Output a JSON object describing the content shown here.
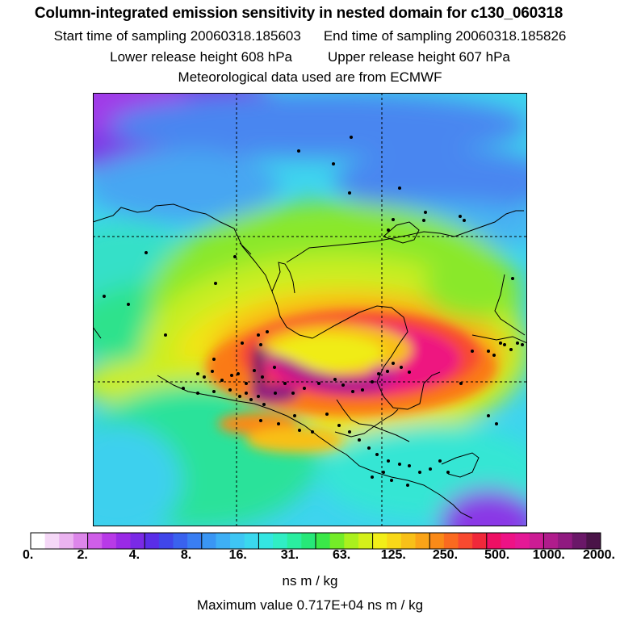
{
  "header": {
    "title": "Column-integrated emission sensitivity in nested domain for c130_060318",
    "start_label": "Start time of sampling 20060318.185603",
    "end_label": "End time of sampling 20060318.185826",
    "lower_label": "Lower release height  608 hPa",
    "upper_label": "Upper release height  607 hPa",
    "met_label": "Meteorological data used are from ECMWF"
  },
  "colorbar": {
    "tick_labels": [
      "0.",
      "2.",
      "4.",
      "8.",
      "16.",
      "31.",
      "63.",
      "125.",
      "250.",
      "500.",
      "1000.",
      "2000."
    ],
    "colors": [
      "#ffffff",
      "#f5d8f7",
      "#ebb3f0",
      "#dd86ea",
      "#cf5ee8",
      "#b83ae7",
      "#9a2ae6",
      "#7a2ae6",
      "#5a2ee8",
      "#4046ea",
      "#3a62ee",
      "#3a7ef2",
      "#3a96f4",
      "#3eaff5",
      "#3ec6f4",
      "#3ad8ee",
      "#34e6e2",
      "#30eec4",
      "#2aeea0",
      "#26e878",
      "#3ae848",
      "#74ec28",
      "#aaf01e",
      "#d4f01a",
      "#f2ee18",
      "#f8d818",
      "#f8c018",
      "#faa418",
      "#fa8a18",
      "#fa6a20",
      "#f84a30",
      "#f0283a",
      "#ee1064",
      "#ee1286",
      "#e41896",
      "#cc1c94",
      "#b01c8c",
      "#901a80",
      "#6a1868",
      "#4a1448"
    ],
    "units": "ns m / kg",
    "max_value_text": "Maximum value  0.717E+04 ns m / kg"
  },
  "map": {
    "gridlines": "dashed",
    "icons": [
      "release-site-marker-icon"
    ]
  }
}
